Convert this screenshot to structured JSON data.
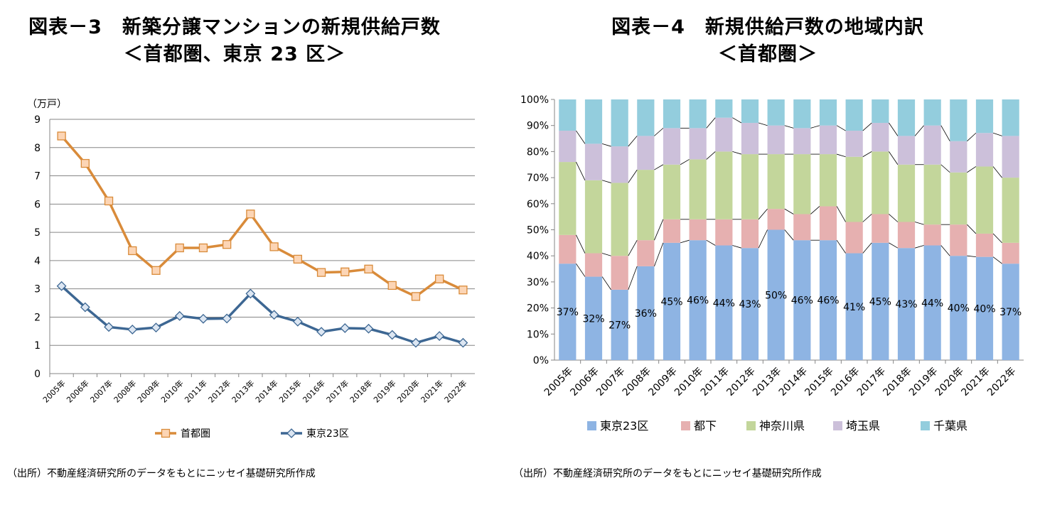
{
  "figure3": {
    "title_line1": "図表－3　新築分譲マンションの新規供給戸数",
    "title_line2": "＜首都圏、東京 23 区＞",
    "source": "（出所）不動産経済研究所のデータをもとにニッセイ基礎研究所作成"
  },
  "figure4": {
    "title_line1": "図表－4　新規供給戸数の地域内訳",
    "title_line2": "＜首都圏＞",
    "source": "（出所）不動産経済研究所のデータをもとにニッセイ基礎研究所作成"
  },
  "chart_data": [
    {
      "type": "line",
      "unit_label": "（万戸）",
      "categories": [
        "2005年",
        "2006年",
        "2007年",
        "2008年",
        "2009年",
        "2010年",
        "2011年",
        "2012年",
        "2013年",
        "2014年",
        "2015年",
        "2016年",
        "2017年",
        "2018年",
        "2019年",
        "2020年",
        "2021年",
        "2022年"
      ],
      "ylim": [
        0,
        9
      ],
      "yticks": [
        "0",
        "1",
        "2",
        "3",
        "4",
        "5",
        "6",
        "7",
        "8",
        "9"
      ],
      "grid": true,
      "legend_position": "bottom",
      "series": [
        {
          "name": "首都圏",
          "color": "#D98B3A",
          "marker": "square",
          "values": [
            8.41,
            7.44,
            6.11,
            4.35,
            3.65,
            4.45,
            4.45,
            4.57,
            5.65,
            4.49,
            4.05,
            3.58,
            3.6,
            3.7,
            3.12,
            2.73,
            3.35,
            2.96
          ]
        },
        {
          "name": "東京23区",
          "color": "#3D6793",
          "marker": "diamond",
          "values": [
            3.1,
            2.35,
            1.65,
            1.56,
            1.63,
            2.04,
            1.94,
            1.95,
            2.83,
            2.08,
            1.84,
            1.48,
            1.61,
            1.59,
            1.37,
            1.09,
            1.33,
            1.09
          ]
        }
      ]
    },
    {
      "type": "bar",
      "stacked": true,
      "categories": [
        "2005年",
        "2006年",
        "2007年",
        "2008年",
        "2009年",
        "2010年",
        "2011年",
        "2012年",
        "2013年",
        "2014年",
        "2015年",
        "2016年",
        "2017年",
        "2018年",
        "2019年",
        "2020年",
        "2021年",
        "2022年"
      ],
      "ylim": [
        0,
        100
      ],
      "yticks": [
        "0%",
        "10%",
        "20%",
        "30%",
        "40%",
        "50%",
        "60%",
        "70%",
        "80%",
        "90%",
        "100%"
      ],
      "legend_position": "bottom",
      "series": [
        {
          "name": "東京23区",
          "color": "#8EB4E3",
          "values": [
            37,
            32,
            27,
            36,
            45,
            46,
            44,
            43,
            50,
            46,
            46,
            41,
            45,
            43,
            44,
            40,
            40,
            37
          ],
          "labels": [
            "37%",
            "32%",
            "27%",
            "36%",
            "45%",
            "46%",
            "44%",
            "43%",
            "50%",
            "46%",
            "46%",
            "41%",
            "45%",
            "43%",
            "44%",
            "40%",
            "40%",
            "37%"
          ]
        },
        {
          "name": "都下",
          "color": "#E6B0B0",
          "values": [
            11,
            9,
            13,
            10,
            9,
            8,
            10,
            11,
            8,
            10,
            13,
            12,
            11,
            10,
            8,
            12,
            9,
            8
          ]
        },
        {
          "name": "神奈川県",
          "color": "#C3D69B",
          "values": [
            28,
            28,
            28,
            27,
            21,
            23,
            26,
            25,
            21,
            23,
            20,
            25,
            24,
            22,
            23,
            20,
            26,
            25
          ]
        },
        {
          "name": "埼玉県",
          "color": "#CCC0DA",
          "values": [
            12,
            14,
            14,
            13,
            14,
            12,
            13,
            12,
            11,
            10,
            11,
            10,
            11,
            11,
            15,
            12,
            13,
            16
          ]
        },
        {
          "name": "千葉県",
          "color": "#93CDDD",
          "values": [
            12,
            17,
            18,
            14,
            11,
            11,
            7,
            9,
            10,
            11,
            10,
            12,
            9,
            14,
            10,
            16,
            13,
            14
          ]
        }
      ]
    }
  ]
}
